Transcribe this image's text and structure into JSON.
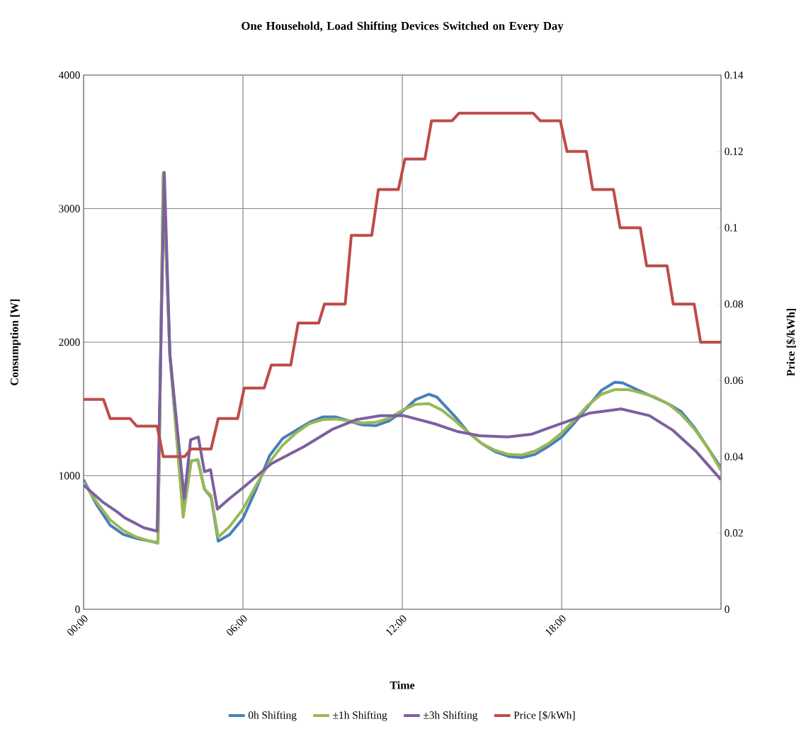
{
  "chart_data": {
    "type": "line",
    "title": "One Household, Load Shifting Devices Switched on Every Day",
    "xlabel": "Time",
    "ylabel": "Consumption [W]",
    "y2label": "Price [$/kWh]",
    "xlim": [
      0,
      24
    ],
    "xticks": [
      {
        "value": 0,
        "label": "00:00"
      },
      {
        "value": 6,
        "label": "06:00"
      },
      {
        "value": 12,
        "label": "12:00"
      },
      {
        "value": 18,
        "label": "18:00"
      }
    ],
    "ylim": [
      0,
      4000
    ],
    "yticks": [
      0,
      1000,
      2000,
      3000,
      4000
    ],
    "y2lim": [
      0,
      0.14
    ],
    "y2ticks": [
      0,
      0.02,
      0.04,
      0.06,
      0.08,
      0.1,
      0.12,
      0.14
    ],
    "grid": true,
    "legend": "bottom",
    "line_style": "solid",
    "series": [
      {
        "name": "0h Shifting",
        "color": "#4a7ebb",
        "x": [
          0,
          0.5,
          1,
          1.5,
          2,
          2.5,
          2.8,
          3.0,
          3.25,
          3.75,
          4.05,
          4.3,
          4.55,
          4.8,
          5.07,
          5.5,
          6,
          6.5,
          7,
          7.5,
          8,
          8.5,
          9,
          9.5,
          10,
          10.5,
          11,
          11.5,
          12,
          12.5,
          13,
          13.3,
          14,
          14.5,
          15,
          15.5,
          16,
          16.5,
          17,
          17.5,
          18,
          18.5,
          19,
          19.5,
          20,
          20.3,
          21,
          22,
          22.5,
          23,
          23.5,
          24
        ],
        "values": [
          970,
          780,
          630,
          560,
          530,
          510,
          500,
          3250,
          1900,
          720,
          1110,
          1120,
          900,
          840,
          510,
          560,
          680,
          900,
          1150,
          1280,
          1340,
          1400,
          1440,
          1440,
          1410,
          1380,
          1375,
          1410,
          1480,
          1570,
          1610,
          1590,
          1440,
          1320,
          1240,
          1180,
          1145,
          1135,
          1160,
          1220,
          1290,
          1400,
          1520,
          1640,
          1700,
          1695,
          1630,
          1540,
          1480,
          1360,
          1210,
          1060
        ]
      },
      {
        "name": "±1h Shifting",
        "color": "#98b954",
        "x": [
          0,
          0.5,
          1,
          1.5,
          2,
          2.5,
          2.8,
          3.0,
          3.25,
          3.75,
          4.05,
          4.3,
          4.55,
          4.8,
          5.07,
          5.5,
          6,
          6.5,
          7,
          7.5,
          8,
          8.5,
          9,
          9.5,
          10,
          10.5,
          11,
          11.5,
          12,
          12.5,
          13,
          13.5,
          14,
          14.5,
          15,
          15.5,
          16,
          16.5,
          17,
          17.5,
          18,
          18.5,
          19,
          19.5,
          20,
          20.5,
          21,
          21.5,
          22,
          22.5,
          23,
          23.5,
          24
        ],
        "values": [
          950,
          800,
          670,
          590,
          540,
          510,
          495,
          3270,
          1900,
          690,
          1110,
          1120,
          900,
          850,
          540,
          620,
          750,
          930,
          1100,
          1230,
          1320,
          1390,
          1420,
          1425,
          1410,
          1395,
          1400,
          1430,
          1490,
          1535,
          1540,
          1490,
          1410,
          1320,
          1240,
          1190,
          1160,
          1155,
          1185,
          1240,
          1320,
          1420,
          1530,
          1610,
          1645,
          1645,
          1620,
          1590,
          1540,
          1460,
          1350,
          1210,
          1040
        ]
      },
      {
        "name": "±3h Shifting",
        "color": "#7d60a0",
        "x": [
          0,
          0.74,
          1.26,
          1.55,
          2.03,
          2.27,
          2.77,
          3.04,
          3.25,
          3.79,
          4.03,
          4.32,
          4.55,
          4.78,
          5.04,
          5.5,
          6,
          6.45,
          7.07,
          8.32,
          9.39,
          10.27,
          11.17,
          12.05,
          13.2,
          14.1,
          14.9,
          15.97,
          16.85,
          18.19,
          19.07,
          20.24,
          21.3,
          22.19,
          23.07,
          24
        ],
        "values": [
          930,
          800,
          730,
          685,
          635,
          610,
          585,
          3270,
          1910,
          830,
          1270,
          1290,
          1030,
          1045,
          750,
          830,
          910,
          985,
          1090,
          1220,
          1350,
          1420,
          1450,
          1450,
          1390,
          1330,
          1300,
          1290,
          1310,
          1405,
          1470,
          1500,
          1450,
          1340,
          1180,
          970
        ]
      },
      {
        "name": "Price [$/kWh]",
        "color": "#be4b48",
        "axis": "y2",
        "x": [
          0,
          0.75,
          1.0,
          1.75,
          2.0,
          2.77,
          3.0,
          3.8,
          4.05,
          4.8,
          5.07,
          5.8,
          6.05,
          6.8,
          7.07,
          7.8,
          8.08,
          8.85,
          9.07,
          9.85,
          10.08,
          10.85,
          11.1,
          11.85,
          12.1,
          12.85,
          13.1,
          13.87,
          14.13,
          16.93,
          17.2,
          17.95,
          18.2,
          18.93,
          19.17,
          19.95,
          20.2,
          20.96,
          21.2,
          21.97,
          22.2,
          22.99,
          23.23,
          24
        ],
        "values": [
          0.055,
          0.055,
          0.05,
          0.05,
          0.048,
          0.048,
          0.04,
          0.04,
          0.042,
          0.042,
          0.05,
          0.05,
          0.058,
          0.058,
          0.064,
          0.064,
          0.075,
          0.075,
          0.08,
          0.08,
          0.098,
          0.098,
          0.11,
          0.11,
          0.118,
          0.118,
          0.128,
          0.128,
          0.13,
          0.13,
          0.128,
          0.128,
          0.12,
          0.12,
          0.11,
          0.11,
          0.1,
          0.1,
          0.09,
          0.09,
          0.08,
          0.08,
          0.07,
          0.07
        ]
      }
    ]
  }
}
